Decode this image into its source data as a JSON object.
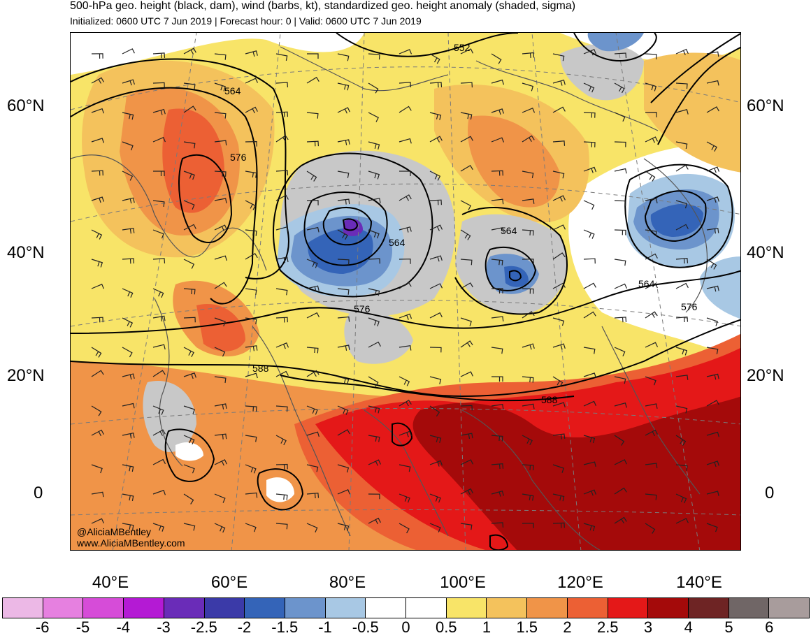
{
  "header": {
    "title": "500-hPa geo. height (black, dam), wind (barbs, kt), standardized geo. height anomaly (shaded, sigma)",
    "subtitle": "Initialized: 0600 UTC 7 Jun 2019 | Forecast hour: 0 | Valid: 0600 UTC 7 Jun 2019"
  },
  "map": {
    "lat_labels_left": [
      "60°N",
      "40°N",
      "20°N",
      "0"
    ],
    "lat_labels_right": [
      "60°N",
      "40°N",
      "20°N",
      "0"
    ],
    "lon_labels": [
      "40°E",
      "60°E",
      "80°E",
      "100°E",
      "120°E",
      "140°E"
    ],
    "contour_labels": [
      "552",
      "564",
      "576",
      "564",
      "564",
      "576",
      "564",
      "576",
      "588",
      "588"
    ],
    "credit_handle": "@AliciaMBentley",
    "credit_site": "www.AliciaMBentley.com"
  },
  "colorbar": {
    "colors": [
      "#ecb8e6",
      "#e680e0",
      "#d64cd8",
      "#b41ad4",
      "#6a2cb8",
      "#3b3aa8",
      "#3464b8",
      "#6c94cc",
      "#a8c8e4",
      "#ffffff",
      "#ffffff",
      "#f8e468",
      "#f4c25c",
      "#f09448",
      "#ec6034",
      "#e41818",
      "#a40a0a",
      "#6e2424",
      "#706666",
      "#a89c9c"
    ],
    "labels": [
      "-6",
      "-5",
      "-4",
      "-3",
      "-2.5",
      "-2",
      "-1.5",
      "-1",
      "-0.5",
      "0",
      "0.5",
      "1",
      "1.5",
      "2",
      "2.5",
      "3",
      "4",
      "5",
      "6"
    ]
  }
}
